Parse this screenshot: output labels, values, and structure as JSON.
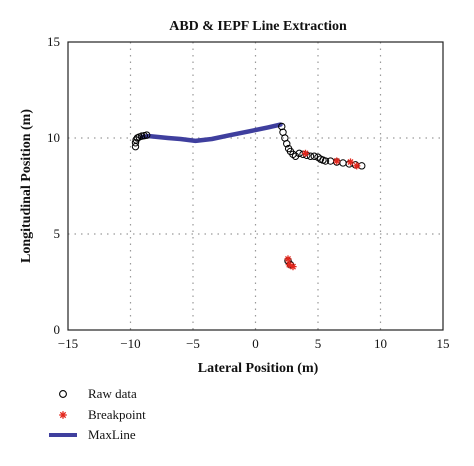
{
  "chart_data": {
    "type": "scatter",
    "title": "ABD & IEPF Line Extraction",
    "xlabel": "Lateral Position (m)",
    "ylabel": "Longitudinal Position (m)",
    "xlim": [
      -15,
      15
    ],
    "ylim": [
      0,
      15
    ],
    "xticks": [
      "−15",
      "−10",
      "−5",
      "0",
      "5",
      "10",
      "15"
    ],
    "yticks": [
      "0",
      "5",
      "10",
      "15"
    ],
    "grid": true,
    "legend_position": "bottom-left",
    "series": [
      {
        "name": "Raw data",
        "marker": "circle",
        "color": "#000000",
        "points": [
          [
            -9.6,
            9.55
          ],
          [
            -9.6,
            9.75
          ],
          [
            -9.55,
            9.9
          ],
          [
            -9.45,
            10.0
          ],
          [
            -9.3,
            10.05
          ],
          [
            -9.1,
            10.1
          ],
          [
            -8.9,
            10.12
          ],
          [
            -8.7,
            10.15
          ],
          [
            2.1,
            10.6
          ],
          [
            2.2,
            10.3
          ],
          [
            2.35,
            10.0
          ],
          [
            2.5,
            9.7
          ],
          [
            2.65,
            9.45
          ],
          [
            2.8,
            9.3
          ],
          [
            3.0,
            9.15
          ],
          [
            3.2,
            9.05
          ],
          [
            3.5,
            9.2
          ],
          [
            3.8,
            9.15
          ],
          [
            4.1,
            9.1
          ],
          [
            4.4,
            9.05
          ],
          [
            4.7,
            9.05
          ],
          [
            5.0,
            9.0
          ],
          [
            5.2,
            8.9
          ],
          [
            5.4,
            8.85
          ],
          [
            5.6,
            8.8
          ],
          [
            6.0,
            8.8
          ],
          [
            6.5,
            8.75
          ],
          [
            7.0,
            8.7
          ],
          [
            7.5,
            8.65
          ],
          [
            8.0,
            8.6
          ],
          [
            8.5,
            8.55
          ],
          [
            2.6,
            3.6
          ],
          [
            2.8,
            3.4
          ]
        ]
      },
      {
        "name": "Breakpoint",
        "marker": "asterisk",
        "color": "#e3261c",
        "points": [
          [
            2.6,
            3.7
          ],
          [
            3.0,
            3.3
          ],
          [
            2.7,
            3.4
          ],
          [
            4.0,
            9.2
          ],
          [
            6.5,
            8.8
          ],
          [
            7.6,
            8.75
          ],
          [
            8.1,
            8.55
          ]
        ]
      },
      {
        "name": "MaxLine",
        "marker": "line",
        "color": "#3f3f9e",
        "points": [
          [
            -9.1,
            10.05
          ],
          [
            -8.5,
            10.1
          ],
          [
            -7.0,
            10.0
          ],
          [
            -6.0,
            9.95
          ],
          [
            -4.8,
            9.85
          ],
          [
            -3.5,
            9.95
          ],
          [
            -2.0,
            10.15
          ],
          [
            -0.5,
            10.35
          ],
          [
            1.0,
            10.55
          ],
          [
            2.0,
            10.7
          ]
        ]
      }
    ]
  }
}
